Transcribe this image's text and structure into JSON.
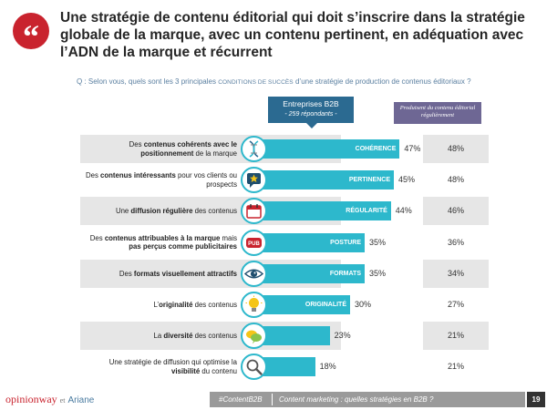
{
  "header": {
    "quote_glyph": "“",
    "title": "Une stratégie de contenu éditorial qui doit s’inscrire dans la stratégie globale de la marque, avec un contenu pertinent, en adéquation avec l’ADN de la marque et récurrent",
    "question_prefix": "Q : Selon vous, quels sont les 3 principales ",
    "question_caps": "CONDITIONS DE SUCCÈS",
    "question_suffix": " d’une stratégie de production de contenus éditoriaux ?"
  },
  "columns": {
    "main_title": "Entreprises B2B",
    "main_sub": "- 259 répondants -",
    "right_title": "Produisent du contenu éditorial régulièrement"
  },
  "chart_data": {
    "type": "bar",
    "orientation": "horizontal",
    "unit": "%",
    "xlim": [
      0,
      100
    ],
    "colors": {
      "bar": "#2db8cc",
      "header": "#2b6a91",
      "subgroup": "#6e6794"
    },
    "rows": [
      {
        "pre": "Des ",
        "bold": "contenus cohérents avec le positionnement",
        "post": " de la marque",
        "bar_label": "COHÉRENCE",
        "value": 47,
        "value_text": "47%",
        "sub_value": 48,
        "sub_text": "48%",
        "icon": "dna-icon"
      },
      {
        "pre": "Des ",
        "bold": "contenus intéressants",
        "post": " pour vos clients ou prospects",
        "bar_label": "PERTINENCE",
        "value": 45,
        "value_text": "45%",
        "sub_value": 48,
        "sub_text": "48%",
        "icon": "star-speech-icon"
      },
      {
        "pre": "Une ",
        "bold": "diffusion régulière",
        "post": " des contenus",
        "bar_label": "RÉGULARITÉ",
        "value": 44,
        "value_text": "44%",
        "sub_value": 46,
        "sub_text": "46%",
        "icon": "calendar-icon"
      },
      {
        "pre": "Des ",
        "bold": "contenus attribuables à la marque",
        "post": " mais ",
        "bold2": "pas perçus comme publicitaires",
        "bar_label": "POSTURE",
        "value": 35,
        "value_text": "35%",
        "sub_value": 36,
        "sub_text": "36%",
        "icon": "pub-icon"
      },
      {
        "pre": "Des ",
        "bold": "formats visuellement attractifs",
        "post": "",
        "bar_label": "FORMATS",
        "value": 35,
        "value_text": "35%",
        "sub_value": 34,
        "sub_text": "34%",
        "icon": "eye-icon"
      },
      {
        "pre": "L’",
        "bold": "originalité",
        "post": " des contenus",
        "bar_label": "ORIGINALITÉ",
        "value": 30,
        "value_text": "30%",
        "sub_value": 27,
        "sub_text": "27%",
        "icon": "lightbulb-icon"
      },
      {
        "pre": "La ",
        "bold": "diversité",
        "post": " des contenus",
        "bar_label": "",
        "value": 23,
        "value_text": "23%",
        "sub_value": 21,
        "sub_text": "21%",
        "icon": "speech-bubbles-icon"
      },
      {
        "pre": "Une stratégie de diffusion qui optimise la ",
        "bold": "visibilité",
        "post": " du contenu",
        "bar_label": "",
        "value": 18,
        "value_text": "18%",
        "sub_value": 21,
        "sub_text": "21%",
        "icon": "magnifier-icon"
      }
    ]
  },
  "footer": {
    "logo_main": "opinionway",
    "logo_et": "et",
    "logo_partner": "Ariane",
    "hashtag": "#ContentB2B",
    "tagline": "Content marketing : quelles stratégies en B2B ?",
    "page_number": "19"
  }
}
